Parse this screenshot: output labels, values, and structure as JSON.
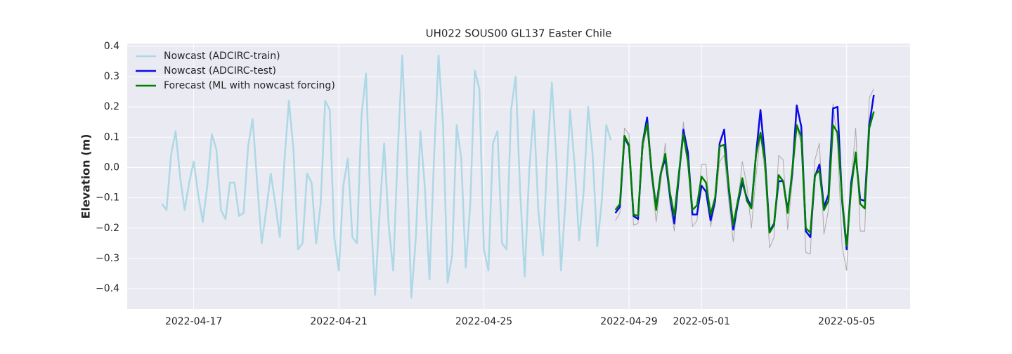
{
  "chart_data": {
    "type": "line",
    "title": "UH022 SOUS00 GL137 Easter Chile",
    "y_label": "Elevation (m)",
    "grid": true,
    "legend_position": "upper left",
    "xlim": [
      "2022-04-15 04:00",
      "2022-05-06 18:00"
    ],
    "xticks": [
      "2022-04-17",
      "2022-04-21",
      "2022-04-25",
      "2022-04-29",
      "2022-05-01",
      "2022-05-05"
    ],
    "ylim": [
      -0.467,
      0.409
    ],
    "yticks": [
      {
        "value": -0.4,
        "label": "−0.4"
      },
      {
        "value": -0.3,
        "label": "−0.3"
      },
      {
        "value": -0.2,
        "label": "−0.2"
      },
      {
        "value": -0.1,
        "label": "−0.1"
      },
      {
        "value": 0,
        "label": "0.0"
      },
      0.1,
      0.2,
      0.3,
      0.4
    ],
    "x": [
      "2022-04-16 03:00",
      "2022-04-16 06:00",
      "2022-04-16 09:00",
      "2022-04-16 12:00",
      "2022-04-16 15:00",
      "2022-04-16 18:00",
      "2022-04-16 21:00",
      "2022-04-17 00:00",
      "2022-04-17 03:00",
      "2022-04-17 06:00",
      "2022-04-17 09:00",
      "2022-04-17 12:00",
      "2022-04-17 15:00",
      "2022-04-17 18:00",
      "2022-04-17 21:00",
      "2022-04-18 00:00",
      "2022-04-18 03:00",
      "2022-04-18 06:00",
      "2022-04-18 09:00",
      "2022-04-18 12:00",
      "2022-04-18 15:00",
      "2022-04-18 18:00",
      "2022-04-18 21:00",
      "2022-04-19 00:00",
      "2022-04-19 03:00",
      "2022-04-19 06:00",
      "2022-04-19 09:00",
      "2022-04-19 12:00",
      "2022-04-19 15:00",
      "2022-04-19 18:00",
      "2022-04-19 21:00",
      "2022-04-20 00:00",
      "2022-04-20 03:00",
      "2022-04-20 06:00",
      "2022-04-20 09:00",
      "2022-04-20 12:00",
      "2022-04-20 15:00",
      "2022-04-20 18:00",
      "2022-04-20 21:00",
      "2022-04-21 00:00",
      "2022-04-21 03:00",
      "2022-04-21 06:00",
      "2022-04-21 09:00",
      "2022-04-21 12:00",
      "2022-04-21 15:00",
      "2022-04-21 18:00",
      "2022-04-21 21:00",
      "2022-04-22 00:00",
      "2022-04-22 03:00",
      "2022-04-22 06:00",
      "2022-04-22 09:00",
      "2022-04-22 12:00",
      "2022-04-22 15:00",
      "2022-04-22 18:00",
      "2022-04-22 21:00",
      "2022-04-23 00:00",
      "2022-04-23 03:00",
      "2022-04-23 06:00",
      "2022-04-23 09:00",
      "2022-04-23 12:00",
      "2022-04-23 15:00",
      "2022-04-23 18:00",
      "2022-04-23 21:00",
      "2022-04-24 00:00",
      "2022-04-24 03:00",
      "2022-04-24 06:00",
      "2022-04-24 09:00",
      "2022-04-24 12:00",
      "2022-04-24 15:00",
      "2022-04-24 18:00",
      "2022-04-24 21:00",
      "2022-04-25 00:00",
      "2022-04-25 03:00",
      "2022-04-25 06:00",
      "2022-04-25 09:00",
      "2022-04-25 12:00",
      "2022-04-25 15:00",
      "2022-04-25 18:00",
      "2022-04-25 21:00",
      "2022-04-26 00:00",
      "2022-04-26 03:00",
      "2022-04-26 06:00",
      "2022-04-26 09:00",
      "2022-04-26 12:00",
      "2022-04-26 15:00",
      "2022-04-26 18:00",
      "2022-04-26 21:00",
      "2022-04-27 00:00",
      "2022-04-27 03:00",
      "2022-04-27 06:00",
      "2022-04-27 09:00",
      "2022-04-27 12:00",
      "2022-04-27 15:00",
      "2022-04-27 18:00",
      "2022-04-27 21:00",
      "2022-04-28 00:00",
      "2022-04-28 03:00",
      "2022-04-28 06:00",
      "2022-04-28 09:00",
      "2022-04-28 12:00",
      "2022-04-28 15:00",
      "2022-04-28 18:00",
      "2022-04-28 21:00",
      "2022-04-29 00:00",
      "2022-04-29 03:00",
      "2022-04-29 06:00",
      "2022-04-29 09:00",
      "2022-04-29 12:00",
      "2022-04-29 15:00",
      "2022-04-29 18:00",
      "2022-04-29 21:00",
      "2022-04-30 00:00",
      "2022-04-30 03:00",
      "2022-04-30 06:00",
      "2022-04-30 09:00",
      "2022-04-30 12:00",
      "2022-04-30 15:00",
      "2022-04-30 18:00",
      "2022-04-30 21:00",
      "2022-05-01 00:00",
      "2022-05-01 03:00",
      "2022-05-01 06:00",
      "2022-05-01 09:00",
      "2022-05-01 12:00",
      "2022-05-01 15:00",
      "2022-05-01 18:00",
      "2022-05-01 21:00",
      "2022-05-02 00:00",
      "2022-05-02 03:00",
      "2022-05-02 06:00",
      "2022-05-02 09:00",
      "2022-05-02 12:00",
      "2022-05-02 15:00",
      "2022-05-02 18:00",
      "2022-05-02 21:00",
      "2022-05-03 00:00",
      "2022-05-03 03:00",
      "2022-05-03 06:00",
      "2022-05-03 09:00",
      "2022-05-03 12:00",
      "2022-05-03 15:00",
      "2022-05-03 18:00",
      "2022-05-03 21:00",
      "2022-05-04 00:00",
      "2022-05-04 03:00",
      "2022-05-04 06:00",
      "2022-05-04 09:00",
      "2022-05-04 12:00",
      "2022-05-04 15:00",
      "2022-05-04 18:00",
      "2022-05-04 21:00",
      "2022-05-05 00:00",
      "2022-05-05 03:00",
      "2022-05-05 06:00",
      "2022-05-05 09:00",
      "2022-05-05 12:00",
      "2022-05-05 15:00",
      "2022-05-05 18:00"
    ],
    "series": [
      {
        "color": "#aaaaaa",
        "width": 1,
        "values": [
          null,
          null,
          null,
          null,
          null,
          null,
          null,
          null,
          null,
          null,
          null,
          null,
          null,
          null,
          null,
          null,
          null,
          null,
          null,
          null,
          null,
          null,
          null,
          null,
          null,
          null,
          null,
          null,
          null,
          null,
          null,
          null,
          null,
          null,
          null,
          null,
          null,
          null,
          null,
          null,
          null,
          null,
          null,
          null,
          null,
          null,
          null,
          null,
          null,
          null,
          null,
          null,
          null,
          null,
          null,
          null,
          null,
          null,
          null,
          null,
          null,
          null,
          null,
          null,
          null,
          null,
          null,
          null,
          null,
          null,
          null,
          null,
          null,
          null,
          null,
          null,
          null,
          null,
          null,
          null,
          null,
          null,
          null,
          null,
          null,
          null,
          null,
          null,
          null,
          null,
          null,
          null,
          null,
          null,
          null,
          null,
          null,
          null,
          null,
          null,
          -0.175,
          -0.15,
          0.13,
          0.11,
          -0.19,
          -0.185,
          0.05,
          0.14,
          -0.04,
          -0.18,
          -0.05,
          0.08,
          -0.12,
          -0.21,
          -0.05,
          0.15,
          0.01,
          -0.195,
          -0.175,
          0.01,
          0.01,
          -0.195,
          -0.12,
          0.02,
          0.04,
          -0.11,
          -0.245,
          -0.12,
          0.02,
          -0.06,
          -0.2,
          -0.03,
          0.11,
          -0.02,
          -0.265,
          -0.23,
          0.04,
          0.025,
          -0.205,
          -0.05,
          0.13,
          0.08,
          -0.28,
          -0.285,
          0.025,
          0.08,
          -0.22,
          -0.14,
          0.21,
          0.08,
          -0.26,
          -0.34,
          -0.05,
          0.13,
          -0.21,
          -0.21,
          0.23,
          0.26
        ]
      },
      {
        "name": "Nowcast (ADCIRC-train)",
        "color": "#add8e6",
        "width": 2.5,
        "values": [
          -0.12,
          -0.14,
          0.04,
          0.12,
          -0.03,
          -0.14,
          -0.05,
          0.02,
          -0.09,
          -0.18,
          -0.06,
          0.11,
          0.06,
          -0.14,
          -0.17,
          -0.05,
          -0.05,
          -0.16,
          -0.15,
          0.07,
          0.16,
          -0.05,
          -0.25,
          -0.14,
          -0.02,
          -0.12,
          -0.23,
          0.02,
          0.22,
          0.06,
          -0.27,
          -0.25,
          -0.02,
          -0.05,
          -0.25,
          -0.12,
          0.22,
          0.19,
          -0.23,
          -0.34,
          -0.06,
          0.03,
          -0.23,
          -0.25,
          0.17,
          0.31,
          -0.14,
          -0.42,
          -0.15,
          0.08,
          -0.19,
          -0.34,
          0.05,
          0.37,
          0.02,
          -0.43,
          -0.23,
          0.12,
          -0.07,
          -0.37,
          0.03,
          0.37,
          0.14,
          -0.38,
          -0.29,
          0.14,
          0.03,
          -0.33,
          -0.12,
          0.32,
          0.26,
          -0.27,
          -0.34,
          0.08,
          0.12,
          -0.25,
          -0.27,
          0.19,
          0.3,
          -0.08,
          -0.36,
          -0.01,
          0.19,
          -0.14,
          -0.29,
          0.04,
          0.28,
          0.02,
          -0.34,
          -0.11,
          0.19,
          0.01,
          -0.24,
          -0.08,
          0.2,
          0.04,
          -0.26,
          -0.11,
          0.14,
          0.09,
          null,
          null,
          null,
          null,
          null,
          null,
          null,
          null,
          null,
          null,
          null,
          null,
          null,
          null,
          null,
          null,
          null,
          null,
          null,
          null,
          null,
          null,
          null,
          null,
          null,
          null,
          null,
          null,
          null,
          null,
          null,
          null,
          null,
          null,
          null,
          null,
          null,
          null,
          null,
          null,
          null,
          null,
          null,
          null,
          null,
          null,
          null,
          null,
          null,
          null,
          null,
          null,
          null,
          null,
          null,
          null,
          null,
          null
        ]
      },
      {
        "name": "Nowcast (ADCIRC-test)",
        "color": "#0a0ae6",
        "width": 2.5,
        "values": [
          null,
          null,
          null,
          null,
          null,
          null,
          null,
          null,
          null,
          null,
          null,
          null,
          null,
          null,
          null,
          null,
          null,
          null,
          null,
          null,
          null,
          null,
          null,
          null,
          null,
          null,
          null,
          null,
          null,
          null,
          null,
          null,
          null,
          null,
          null,
          null,
          null,
          null,
          null,
          null,
          null,
          null,
          null,
          null,
          null,
          null,
          null,
          null,
          null,
          null,
          null,
          null,
          null,
          null,
          null,
          null,
          null,
          null,
          null,
          null,
          null,
          null,
          null,
          null,
          null,
          null,
          null,
          null,
          null,
          null,
          null,
          null,
          null,
          null,
          null,
          null,
          null,
          null,
          null,
          null,
          null,
          null,
          null,
          null,
          null,
          null,
          null,
          null,
          null,
          null,
          null,
          null,
          null,
          null,
          null,
          null,
          null,
          null,
          null,
          null,
          -0.15,
          -0.13,
          0.1,
          0.07,
          -0.16,
          -0.17,
          0.08,
          0.165,
          -0.02,
          -0.13,
          -0.02,
          0.03,
          -0.09,
          -0.185,
          -0.03,
          0.125,
          0.05,
          -0.155,
          -0.155,
          -0.06,
          -0.08,
          -0.175,
          -0.11,
          0.08,
          0.125,
          -0.07,
          -0.205,
          -0.12,
          -0.05,
          -0.1,
          -0.13,
          0.04,
          0.19,
          0.03,
          -0.21,
          -0.185,
          -0.045,
          -0.045,
          -0.14,
          -0.02,
          0.205,
          0.135,
          -0.21,
          -0.23,
          -0.03,
          0.01,
          -0.13,
          -0.09,
          0.195,
          0.2,
          -0.11,
          -0.27,
          -0.05,
          0.04,
          -0.105,
          -0.11,
          0.14,
          0.24
        ]
      },
      {
        "name": "Forecast (ML with nowcast forcing)",
        "color": "#008000",
        "width": 2.5,
        "values": [
          null,
          null,
          null,
          null,
          null,
          null,
          null,
          null,
          null,
          null,
          null,
          null,
          null,
          null,
          null,
          null,
          null,
          null,
          null,
          null,
          null,
          null,
          null,
          null,
          null,
          null,
          null,
          null,
          null,
          null,
          null,
          null,
          null,
          null,
          null,
          null,
          null,
          null,
          null,
          null,
          null,
          null,
          null,
          null,
          null,
          null,
          null,
          null,
          null,
          null,
          null,
          null,
          null,
          null,
          null,
          null,
          null,
          null,
          null,
          null,
          null,
          null,
          null,
          null,
          null,
          null,
          null,
          null,
          null,
          null,
          null,
          null,
          null,
          null,
          null,
          null,
          null,
          null,
          null,
          null,
          null,
          null,
          null,
          null,
          null,
          null,
          null,
          null,
          null,
          null,
          null,
          null,
          null,
          null,
          null,
          null,
          null,
          null,
          null,
          null,
          -0.14,
          -0.12,
          0.105,
          0.075,
          -0.155,
          -0.16,
          0.08,
          0.145,
          -0.01,
          -0.14,
          -0.02,
          0.045,
          -0.08,
          -0.16,
          -0.02,
          0.11,
          0.02,
          -0.14,
          -0.125,
          -0.03,
          -0.05,
          -0.155,
          -0.1,
          0.07,
          0.075,
          -0.06,
          -0.19,
          -0.11,
          -0.035,
          -0.11,
          -0.135,
          0.04,
          0.115,
          0.02,
          -0.215,
          -0.19,
          -0.025,
          -0.045,
          -0.15,
          -0.01,
          0.14,
          0.1,
          -0.2,
          -0.215,
          -0.025,
          -0.01,
          -0.14,
          -0.11,
          0.14,
          0.115,
          -0.1,
          -0.26,
          -0.07,
          0.05,
          -0.12,
          -0.135,
          0.13,
          0.185
        ]
      }
    ]
  }
}
